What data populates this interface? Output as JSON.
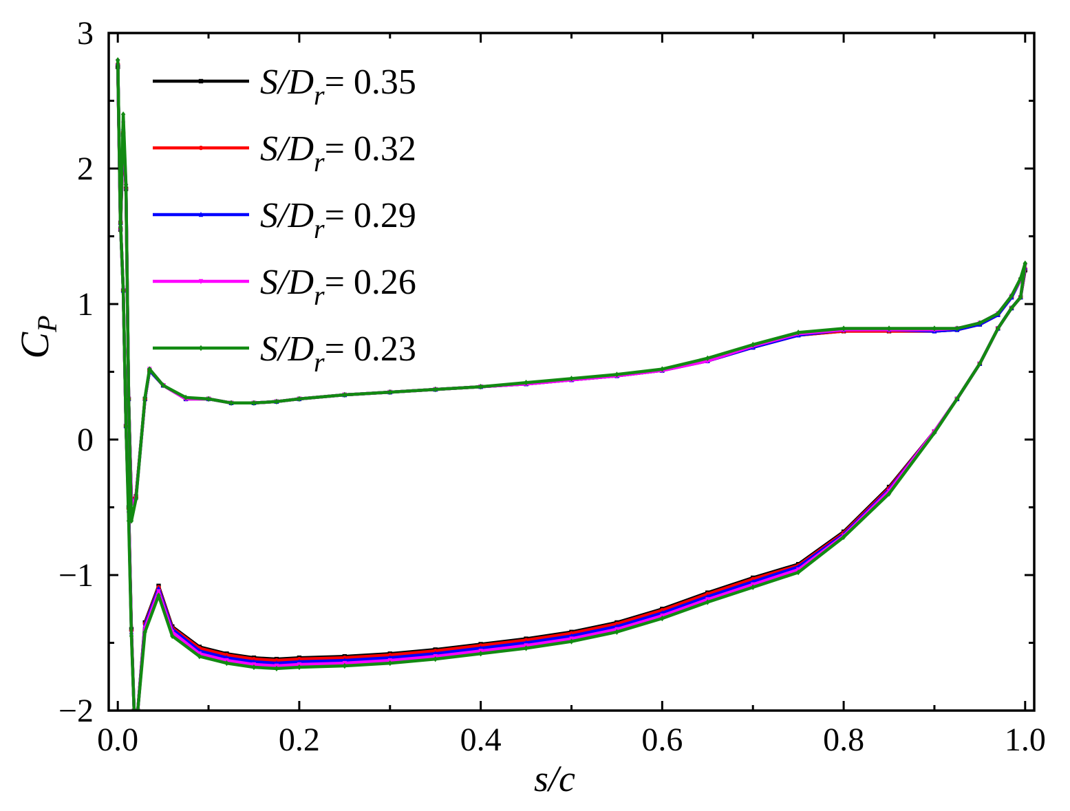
{
  "chart_data": {
    "type": "line",
    "title": "",
    "xlabel": "s/c",
    "ylabel": "C_P",
    "xlim": [
      -0.01,
      1.01
    ],
    "ylim": [
      -2,
      3
    ],
    "xticks": [
      0.0,
      0.2,
      0.4,
      0.6,
      0.8,
      1.0
    ],
    "xtick_labels": [
      "0.0",
      "0.2",
      "0.4",
      "0.6",
      "0.8",
      "1.0"
    ],
    "yticks": [
      -2,
      -1,
      0,
      1,
      2,
      3
    ],
    "ytick_labels": [
      "−2",
      "−1",
      "0",
      "1",
      "2",
      "3"
    ],
    "grid": false,
    "legend_position": "top-left",
    "series": [
      {
        "name": "S/D_r = 0.35",
        "legend_prefix": "S/D",
        "legend_sub": "r",
        "legend_value": "= 0.35",
        "color": "#000000",
        "marker": "square",
        "upper": {
          "x": [
            0.0,
            0.003,
            0.006,
            0.009,
            0.012,
            0.015,
            0.02,
            0.03,
            0.035,
            0.05,
            0.075,
            0.1,
            0.125,
            0.15,
            0.175,
            0.2,
            0.25,
            0.3,
            0.35,
            0.4,
            0.45,
            0.5,
            0.55,
            0.6,
            0.65,
            0.7,
            0.75,
            0.8,
            0.85,
            0.9,
            0.925,
            0.95,
            0.97,
            0.985,
            0.995,
            1.0
          ],
          "y": [
            2.75,
            1.55,
            2.25,
            1.85,
            0.3,
            -0.45,
            -0.42,
            0.3,
            0.51,
            0.4,
            0.3,
            0.3,
            0.27,
            0.27,
            0.28,
            0.3,
            0.33,
            0.35,
            0.37,
            0.39,
            0.41,
            0.44,
            0.47,
            0.51,
            0.58,
            0.68,
            0.77,
            0.8,
            0.8,
            0.8,
            0.81,
            0.85,
            0.92,
            1.05,
            1.18,
            1.25
          ]
        },
        "lower": {
          "x": [
            0.0,
            0.003,
            0.006,
            0.009,
            0.012,
            0.015,
            0.018,
            0.022,
            0.03,
            0.045,
            0.06,
            0.09,
            0.12,
            0.15,
            0.175,
            0.2,
            0.25,
            0.3,
            0.35,
            0.4,
            0.45,
            0.5,
            0.55,
            0.6,
            0.65,
            0.7,
            0.75,
            0.8,
            0.85,
            0.9,
            0.925,
            0.95,
            0.97,
            0.985,
            0.995,
            1.0
          ],
          "y": [
            2.75,
            1.6,
            1.1,
            0.1,
            -0.5,
            -1.4,
            -2.0,
            -2.0,
            -1.35,
            -1.08,
            -1.38,
            -1.53,
            -1.58,
            -1.61,
            -1.62,
            -1.61,
            -1.6,
            -1.58,
            -1.55,
            -1.51,
            -1.47,
            -1.42,
            -1.35,
            -1.25,
            -1.13,
            -1.02,
            -0.92,
            -0.68,
            -0.35,
            0.06,
            0.3,
            0.56,
            0.82,
            0.97,
            1.05,
            1.25
          ]
        }
      },
      {
        "name": "S/D_r = 0.32",
        "legend_prefix": "S/D",
        "legend_sub": "r",
        "legend_value": "= 0.32",
        "color": "#ff0000",
        "marker": "circle",
        "upper": {
          "x": [
            0.0,
            0.003,
            0.006,
            0.009,
            0.012,
            0.015,
            0.02,
            0.03,
            0.035,
            0.05,
            0.075,
            0.1,
            0.125,
            0.15,
            0.175,
            0.2,
            0.25,
            0.3,
            0.35,
            0.4,
            0.45,
            0.5,
            0.55,
            0.6,
            0.65,
            0.7,
            0.75,
            0.8,
            0.85,
            0.9,
            0.925,
            0.95,
            0.97,
            0.985,
            0.995,
            1.0
          ],
          "y": [
            2.77,
            1.55,
            2.27,
            1.85,
            0.3,
            -0.46,
            -0.42,
            0.3,
            0.51,
            0.4,
            0.3,
            0.3,
            0.27,
            0.27,
            0.28,
            0.3,
            0.33,
            0.35,
            0.37,
            0.39,
            0.41,
            0.44,
            0.47,
            0.51,
            0.58,
            0.68,
            0.77,
            0.8,
            0.8,
            0.8,
            0.81,
            0.85,
            0.92,
            1.05,
            1.18,
            1.26
          ]
        },
        "lower": {
          "x": [
            0.0,
            0.003,
            0.006,
            0.009,
            0.012,
            0.015,
            0.018,
            0.022,
            0.03,
            0.045,
            0.06,
            0.09,
            0.12,
            0.15,
            0.175,
            0.2,
            0.25,
            0.3,
            0.35,
            0.4,
            0.45,
            0.5,
            0.55,
            0.6,
            0.65,
            0.7,
            0.75,
            0.8,
            0.85,
            0.9,
            0.925,
            0.95,
            0.97,
            0.985,
            0.995,
            1.0
          ],
          "y": [
            2.77,
            1.6,
            1.1,
            0.1,
            -0.51,
            -1.41,
            -2.0,
            -2.0,
            -1.36,
            -1.09,
            -1.39,
            -1.54,
            -1.59,
            -1.62,
            -1.63,
            -1.62,
            -1.61,
            -1.59,
            -1.56,
            -1.52,
            -1.48,
            -1.43,
            -1.36,
            -1.26,
            -1.14,
            -1.03,
            -0.93,
            -0.69,
            -0.36,
            0.06,
            0.3,
            0.56,
            0.82,
            0.97,
            1.05,
            1.26
          ]
        }
      },
      {
        "name": "S/D_r = 0.29",
        "legend_prefix": "S/D",
        "legend_sub": "r",
        "legend_value": "= 0.29",
        "color": "#0000ff",
        "marker": "triangle-up",
        "upper": {
          "x": [
            0.0,
            0.003,
            0.006,
            0.009,
            0.012,
            0.015,
            0.02,
            0.03,
            0.035,
            0.05,
            0.075,
            0.1,
            0.125,
            0.15,
            0.175,
            0.2,
            0.25,
            0.3,
            0.35,
            0.4,
            0.45,
            0.5,
            0.55,
            0.6,
            0.65,
            0.7,
            0.75,
            0.8,
            0.85,
            0.9,
            0.925,
            0.95,
            0.97,
            0.985,
            0.995,
            1.0
          ],
          "y": [
            2.78,
            1.56,
            2.3,
            1.86,
            0.3,
            -0.47,
            -0.43,
            0.3,
            0.51,
            0.4,
            0.3,
            0.3,
            0.27,
            0.27,
            0.28,
            0.3,
            0.33,
            0.35,
            0.37,
            0.39,
            0.41,
            0.44,
            0.47,
            0.51,
            0.58,
            0.68,
            0.77,
            0.81,
            0.81,
            0.8,
            0.81,
            0.85,
            0.92,
            1.05,
            1.18,
            1.27
          ]
        },
        "lower": {
          "x": [
            0.0,
            0.003,
            0.006,
            0.009,
            0.012,
            0.015,
            0.018,
            0.022,
            0.03,
            0.045,
            0.06,
            0.09,
            0.12,
            0.15,
            0.175,
            0.2,
            0.25,
            0.3,
            0.35,
            0.4,
            0.45,
            0.5,
            0.55,
            0.6,
            0.65,
            0.7,
            0.75,
            0.8,
            0.85,
            0.9,
            0.925,
            0.95,
            0.97,
            0.985,
            0.995,
            1.0
          ],
          "y": [
            2.78,
            1.6,
            1.1,
            0.1,
            -0.52,
            -1.42,
            -2.0,
            -2.0,
            -1.37,
            -1.1,
            -1.4,
            -1.56,
            -1.61,
            -1.64,
            -1.65,
            -1.64,
            -1.63,
            -1.61,
            -1.58,
            -1.54,
            -1.5,
            -1.45,
            -1.38,
            -1.28,
            -1.16,
            -1.05,
            -0.94,
            -0.7,
            -0.37,
            0.06,
            0.3,
            0.56,
            0.82,
            0.97,
            1.05,
            1.27
          ]
        }
      },
      {
        "name": "S/D_r = 0.26",
        "legend_prefix": "S/D",
        "legend_sub": "r",
        "legend_value": "= 0.26",
        "color": "#ff00ff",
        "marker": "triangle-down",
        "upper": {
          "x": [
            0.0,
            0.003,
            0.006,
            0.009,
            0.012,
            0.015,
            0.02,
            0.03,
            0.035,
            0.05,
            0.075,
            0.1,
            0.125,
            0.15,
            0.175,
            0.2,
            0.25,
            0.3,
            0.35,
            0.4,
            0.45,
            0.5,
            0.55,
            0.6,
            0.65,
            0.7,
            0.75,
            0.8,
            0.85,
            0.9,
            0.925,
            0.95,
            0.97,
            0.985,
            0.995,
            1.0
          ],
          "y": [
            2.79,
            1.56,
            2.33,
            1.87,
            0.3,
            -0.48,
            -0.43,
            0.3,
            0.52,
            0.4,
            0.3,
            0.3,
            0.27,
            0.27,
            0.28,
            0.3,
            0.33,
            0.35,
            0.37,
            0.39,
            0.41,
            0.44,
            0.47,
            0.51,
            0.58,
            0.69,
            0.78,
            0.81,
            0.81,
            0.81,
            0.82,
            0.86,
            0.93,
            1.06,
            1.18,
            1.28
          ]
        },
        "lower": {
          "x": [
            0.0,
            0.003,
            0.006,
            0.009,
            0.012,
            0.015,
            0.018,
            0.022,
            0.03,
            0.045,
            0.06,
            0.09,
            0.12,
            0.15,
            0.175,
            0.2,
            0.25,
            0.3,
            0.35,
            0.4,
            0.45,
            0.5,
            0.55,
            0.6,
            0.65,
            0.7,
            0.75,
            0.8,
            0.85,
            0.9,
            0.925,
            0.95,
            0.97,
            0.985,
            0.995,
            1.0
          ],
          "y": [
            2.79,
            1.6,
            1.1,
            0.1,
            -0.55,
            -1.43,
            -2.0,
            -2.0,
            -1.39,
            -1.12,
            -1.42,
            -1.58,
            -1.63,
            -1.66,
            -1.67,
            -1.66,
            -1.65,
            -1.63,
            -1.6,
            -1.56,
            -1.52,
            -1.47,
            -1.4,
            -1.3,
            -1.18,
            -1.07,
            -0.96,
            -0.71,
            -0.38,
            0.06,
            0.3,
            0.56,
            0.82,
            0.97,
            1.05,
            1.28
          ]
        }
      },
      {
        "name": "S/D_r = 0.23",
        "legend_prefix": "S/D",
        "legend_sub": "r",
        "legend_value": "= 0.23",
        "color": "#128a12",
        "marker": "diamond",
        "upper": {
          "x": [
            0.0,
            0.003,
            0.006,
            0.009,
            0.012,
            0.015,
            0.02,
            0.03,
            0.035,
            0.05,
            0.075,
            0.1,
            0.125,
            0.15,
            0.175,
            0.2,
            0.25,
            0.3,
            0.35,
            0.4,
            0.45,
            0.5,
            0.55,
            0.6,
            0.65,
            0.7,
            0.75,
            0.8,
            0.85,
            0.9,
            0.925,
            0.95,
            0.97,
            0.985,
            0.995,
            1.0
          ],
          "y": [
            2.8,
            1.57,
            2.4,
            1.88,
            0.3,
            -0.6,
            -0.44,
            0.31,
            0.52,
            0.4,
            0.31,
            0.3,
            0.27,
            0.27,
            0.28,
            0.3,
            0.33,
            0.35,
            0.37,
            0.39,
            0.42,
            0.45,
            0.48,
            0.52,
            0.6,
            0.7,
            0.79,
            0.82,
            0.82,
            0.82,
            0.82,
            0.86,
            0.93,
            1.06,
            1.19,
            1.3
          ]
        },
        "lower": {
          "x": [
            0.0,
            0.003,
            0.006,
            0.009,
            0.012,
            0.015,
            0.018,
            0.022,
            0.03,
            0.045,
            0.06,
            0.09,
            0.12,
            0.15,
            0.175,
            0.2,
            0.25,
            0.3,
            0.35,
            0.4,
            0.45,
            0.5,
            0.55,
            0.6,
            0.65,
            0.7,
            0.75,
            0.8,
            0.85,
            0.9,
            0.925,
            0.95,
            0.97,
            0.985,
            0.995,
            1.0
          ],
          "y": [
            2.8,
            1.6,
            1.1,
            0.1,
            -0.6,
            -1.45,
            -2.0,
            -2.0,
            -1.42,
            -1.15,
            -1.45,
            -1.6,
            -1.65,
            -1.68,
            -1.69,
            -1.68,
            -1.67,
            -1.65,
            -1.62,
            -1.58,
            -1.54,
            -1.49,
            -1.42,
            -1.32,
            -1.2,
            -1.09,
            -0.98,
            -0.72,
            -0.4,
            0.05,
            0.3,
            0.56,
            0.82,
            0.97,
            1.05,
            1.3
          ]
        }
      }
    ]
  }
}
